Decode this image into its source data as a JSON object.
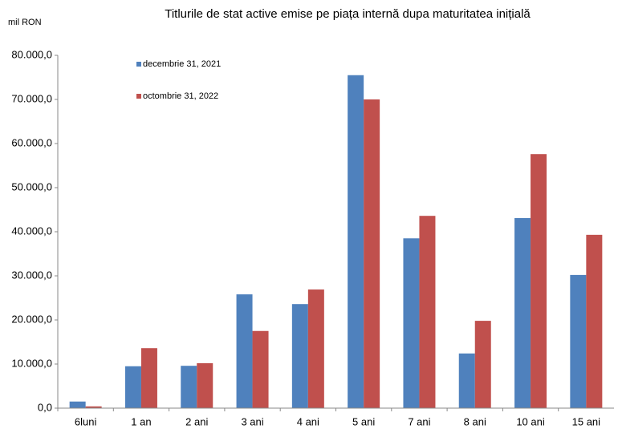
{
  "chart_data": {
    "type": "bar",
    "title": "Titlurile de stat active emise pe piața internă dupa maturitatea inițială",
    "y_label": "mil RON",
    "categories": [
      "6luni",
      "1 an",
      "2 ani",
      "3 ani",
      "4 ani",
      "5 ani",
      "7 ani",
      "8 ani",
      "10 ani",
      "15 ani"
    ],
    "series": [
      {
        "name": "decembrie 31, 2021",
        "color": "#4f81bd",
        "values": [
          1500,
          9500,
          9600,
          25800,
          23600,
          75500,
          38500,
          12400,
          43100,
          30200
        ]
      },
      {
        "name": "octombrie 31, 2022",
        "color": "#c0504d",
        "values": [
          400,
          13600,
          10200,
          17500,
          26900,
          70000,
          43600,
          19800,
          57600,
          39300
        ]
      }
    ],
    "ylim": [
      0,
      80000
    ],
    "yticks": [
      {
        "value": 0,
        "label": "0,0"
      },
      {
        "value": 10000,
        "label": "10.000,0"
      },
      {
        "value": 20000,
        "label": "20.000,0"
      },
      {
        "value": 30000,
        "label": "30.000,0"
      },
      {
        "value": 40000,
        "label": "40.000,0"
      },
      {
        "value": 50000,
        "label": "50.000,0"
      },
      {
        "value": 60000,
        "label": "60.000,0"
      },
      {
        "value": 70000,
        "label": "70.000,0"
      },
      {
        "value": 80000,
        "label": "80.000,0"
      }
    ],
    "legend": "upper left"
  }
}
